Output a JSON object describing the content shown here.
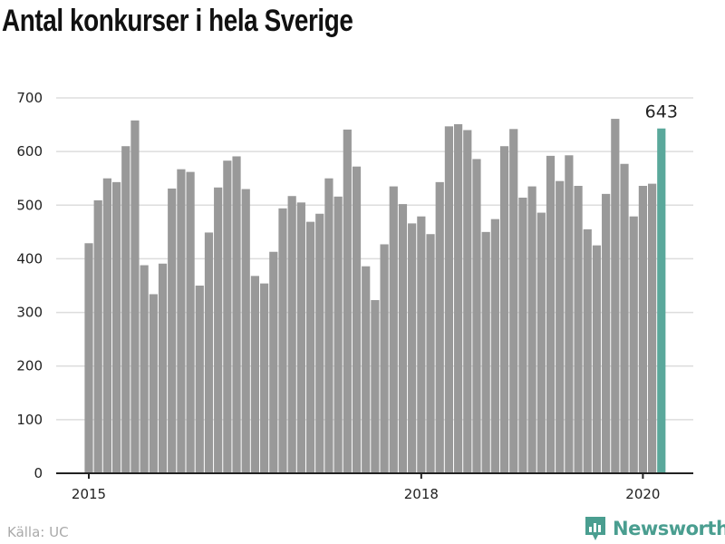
{
  "title": "Antal konkurser i hela Sverige",
  "source": "Källa: UC",
  "logo_text": "Newsworthy",
  "colors": {
    "bar": "#999999",
    "highlight": "#5aa89b",
    "grid": "#dddddd",
    "axis": "#222222",
    "brand": "#4a9e90"
  },
  "chart_data": {
    "type": "bar",
    "title": "Antal konkurser i hela Sverige",
    "xlabel": "",
    "ylabel": "",
    "ylim": [
      0,
      700
    ],
    "yticks": [
      0,
      100,
      200,
      300,
      400,
      500,
      600,
      700
    ],
    "start": "2015-01",
    "xticks": [
      {
        "label": "2015",
        "index": 0
      },
      {
        "label": "2018",
        "index": 36
      },
      {
        "label": "2020",
        "index": 60
      }
    ],
    "grid": true,
    "values": [
      429,
      509,
      550,
      543,
      610,
      658,
      388,
      334,
      391,
      531,
      567,
      562,
      350,
      449,
      533,
      583,
      591,
      530,
      368,
      354,
      413,
      494,
      517,
      505,
      469,
      484,
      550,
      516,
      641,
      572,
      386,
      323,
      427,
      535,
      502,
      466,
      479,
      446,
      543,
      647,
      651,
      640,
      586,
      450,
      474,
      610,
      642,
      514,
      535,
      486,
      592,
      545,
      593,
      536,
      455,
      425,
      521,
      661,
      577,
      479,
      536,
      540,
      643
    ],
    "highlight_index": 62,
    "highlight_label": "643"
  }
}
